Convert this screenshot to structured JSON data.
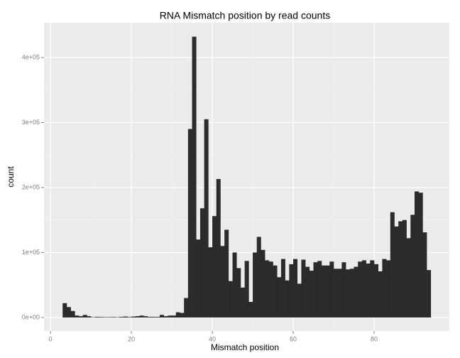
{
  "chart_data": {
    "type": "histogram",
    "title": "RNA Mismatch position by read counts",
    "x_label": "Mismatch position",
    "y_label": "count",
    "color": "#2b2b2b",
    "bins": [
      3,
      4,
      5,
      6,
      7,
      8,
      9,
      10,
      11,
      12,
      13,
      14,
      15,
      16,
      17,
      18,
      19,
      20,
      21,
      22,
      23,
      24,
      25,
      26,
      27,
      28,
      29,
      30,
      31,
      32,
      33,
      34,
      35,
      36,
      37,
      38,
      39,
      40,
      41,
      42,
      43,
      44,
      45,
      46,
      47,
      48,
      49,
      50,
      51,
      52,
      53,
      54,
      55,
      56,
      57,
      58,
      59,
      60,
      61,
      62,
      63,
      64,
      65,
      66,
      67,
      68,
      69,
      70,
      71,
      72,
      73,
      74,
      75,
      76,
      77,
      78,
      79,
      80,
      81,
      82,
      83,
      84,
      85,
      86,
      87,
      88,
      89,
      90,
      91,
      92,
      93,
      94
    ],
    "values": [
      22000,
      16000,
      10000,
      3000,
      2000,
      4000,
      2000,
      500,
      1000,
      800,
      600,
      600,
      800,
      500,
      1000,
      1500,
      800,
      1500,
      2000,
      3000,
      2000,
      1000,
      1000,
      1000,
      4000,
      2000,
      3000,
      3000,
      8000,
      7000,
      30000,
      290000,
      432000,
      120000,
      168000,
      305000,
      108000,
      156000,
      213000,
      110000,
      135000,
      56000,
      100000,
      76000,
      46000,
      87000,
      24000,
      100000,
      124000,
      104000,
      88000,
      86000,
      80000,
      62000,
      90000,
      57000,
      82000,
      90000,
      52000,
      89000,
      78000,
      72000,
      85000,
      87000,
      80000,
      80000,
      86000,
      75000,
      75000,
      85000,
      74000,
      75000,
      78000,
      86000,
      88000,
      83000,
      88000,
      82000,
      71000,
      90000,
      88000,
      162000,
      140000,
      148000,
      150000,
      122000,
      158000,
      194000,
      192000,
      131000,
      73000
    ],
    "xlim": [
      -1.6,
      98.6
    ],
    "ylim": [
      -20800,
      453500
    ],
    "xticks": [
      0,
      20,
      40,
      60,
      80
    ],
    "yticks": [
      {
        "value": 0,
        "label": "0e+00"
      },
      {
        "value": 100000,
        "label": "1e+05"
      },
      {
        "value": 200000,
        "label": "2e+05"
      },
      {
        "value": 300000,
        "label": "3e+05"
      },
      {
        "value": 400000,
        "label": "4e+05"
      }
    ],
    "grid": true
  }
}
